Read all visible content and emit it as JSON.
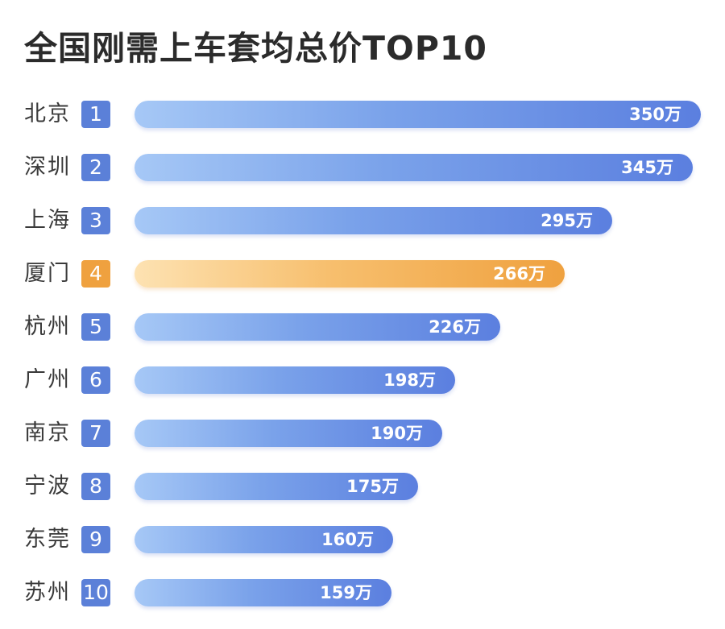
{
  "chart_data": {
    "type": "bar",
    "orientation": "horizontal",
    "title": "全国刚需上车套均总价TOP10",
    "unit": "万",
    "categories": [
      "北京",
      "深圳",
      "上海",
      "厦门",
      "杭州",
      "广州",
      "南京",
      "宁波",
      "东莞",
      "苏州"
    ],
    "ranks": [
      "1",
      "2",
      "3",
      "4",
      "5",
      "6",
      "7",
      "8",
      "9",
      "10"
    ],
    "values": [
      350,
      345,
      295,
      266,
      226,
      198,
      190,
      175,
      160,
      159
    ],
    "value_labels": [
      "350万",
      "345万",
      "295万",
      "266万",
      "226万",
      "198万",
      "190万",
      "175万",
      "160万",
      "159万"
    ],
    "highlight_index": 3,
    "colors": {
      "bar_start": "#a6c8f6",
      "bar_end": "#5b7fdf",
      "rank_badge": "#5b80d8",
      "highlight_start": "#fde2b2",
      "highlight_end": "#efa13f"
    }
  }
}
